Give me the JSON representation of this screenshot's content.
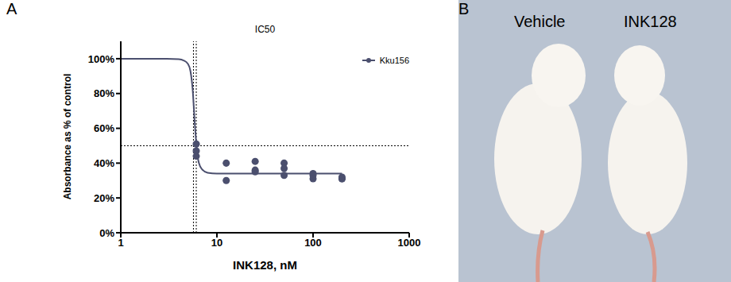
{
  "panel_labels": [
    "A",
    "B"
  ],
  "image_panel": {
    "labels": [
      "Vehicle",
      "INK128"
    ]
  },
  "chart_data": {
    "type": "scatter",
    "title": "IC50",
    "x_label": "INK128, nM",
    "y_label": "Absorbance as % of control",
    "log": "x",
    "xlim": [
      1,
      1000
    ],
    "xticks": [
      1,
      10,
      100,
      1000
    ],
    "ylim": [
      0,
      110
    ],
    "yticks": [
      {
        "value": 0,
        "label": "0%"
      },
      {
        "value": 20,
        "label": "20%"
      },
      {
        "value": 40,
        "label": "40%"
      },
      {
        "value": 60,
        "label": "60%"
      },
      {
        "value": 80,
        "label": "80%"
      },
      {
        "value": 100,
        "label": "100%"
      }
    ],
    "grid": false,
    "legend": "top-right",
    "reference_lines": {
      "x": [
        5.7,
        6.1
      ],
      "y": [
        50
      ]
    },
    "series": [
      {
        "name": "Kku156",
        "color": "#4b4f6e",
        "marker": "circle",
        "line_style": "solid",
        "x": [
          6.1,
          6.1,
          6.1,
          12.5,
          12.5,
          25,
          25,
          25,
          50,
          50,
          50,
          100,
          100,
          100,
          200,
          200,
          200
        ],
        "values": [
          51,
          47,
          44,
          40,
          30,
          41,
          36,
          35,
          40,
          37,
          33,
          34,
          33,
          31,
          32,
          31,
          31
        ],
        "fit_x": [
          1,
          2,
          3,
          4,
          4.5,
          5,
          5.3,
          5.6,
          5.9,
          6.2,
          6.5,
          7,
          8,
          10,
          20,
          50,
          100,
          200
        ],
        "fit_values": [
          100,
          100,
          100,
          99.7,
          99,
          97,
          93,
          82,
          62,
          47,
          40,
          36.5,
          34.5,
          34,
          34,
          34,
          34,
          34
        ]
      }
    ]
  }
}
